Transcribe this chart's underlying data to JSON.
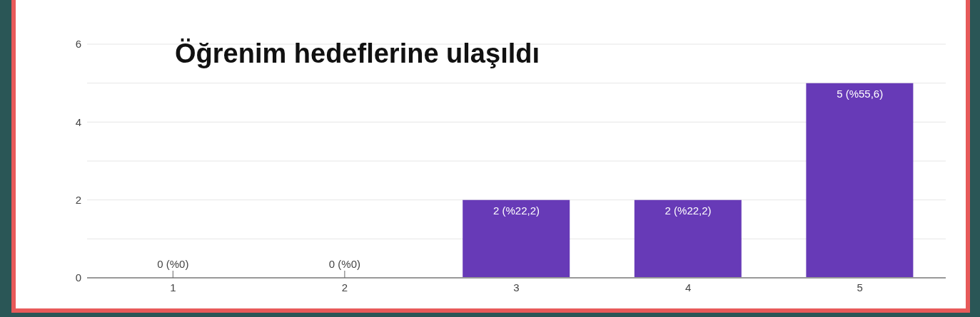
{
  "chart_data": {
    "type": "bar",
    "title": "Öğrenim hedeflerine ulaşıldı",
    "categories": [
      "1",
      "2",
      "3",
      "4",
      "5"
    ],
    "values": [
      0,
      0,
      2,
      2,
      5
    ],
    "color": "#673ab7",
    "value_labels": [
      "0 (%0)",
      "0 (%0)",
      "2 (%22,2)",
      "2 (%22,2)",
      "5 (%55,6)"
    ],
    "ylim": [
      0,
      6
    ],
    "yticks": [
      0,
      {
        "value": 1,
        "label": null
      },
      2,
      {
        "value": 3,
        "label": null
      },
      4,
      {
        "value": 5,
        "label": null
      },
      6
    ],
    "grid": "y"
  }
}
